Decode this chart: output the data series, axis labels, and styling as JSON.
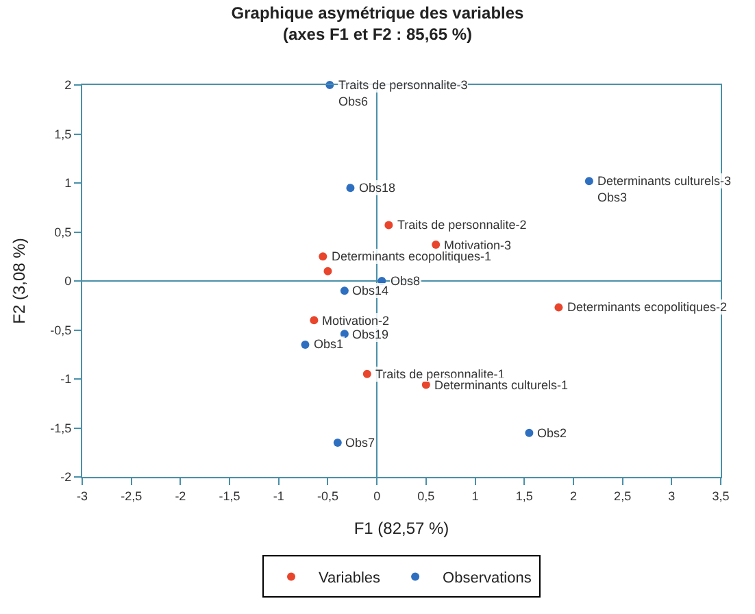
{
  "chart_data": {
    "type": "scatter",
    "title": "Graphique asymétrique des variables\n(axes F1 et F2 : 85,65 %)",
    "xlabel": "F1 (82,57 %)",
    "ylabel": "F2 (3,08 %)",
    "xlim": [
      -3,
      3.5
    ],
    "ylim": [
      -2,
      2
    ],
    "xticks": [
      -3,
      {
        "value": -2.5,
        "label": "-2,5"
      },
      -2,
      {
        "value": -1.5,
        "label": "-1,5"
      },
      -1,
      {
        "value": -0.5,
        "label": "-0,5"
      },
      0,
      {
        "value": 0.5,
        "label": "0,5"
      },
      1,
      {
        "value": 1.5,
        "label": "1,5"
      },
      2,
      {
        "value": 2.5,
        "label": "2,5"
      },
      3,
      {
        "value": 3.5,
        "label": "3,5"
      }
    ],
    "yticks": [
      {
        "value": -2,
        "label": "-2"
      },
      {
        "value": -1.5,
        "label": "-1,5"
      },
      -1,
      {
        "value": -0.5,
        "label": "-0,5"
      },
      0,
      {
        "value": 0.5,
        "label": "0,5"
      },
      1,
      {
        "value": 1.5,
        "label": "1,5"
      },
      2
    ],
    "legend": "bottom",
    "marker": "circle",
    "series": [
      {
        "name": "Variables",
        "color": "#e8452c",
        "x": [
          -0.1,
          0.12,
          null,
          -0.64,
          0.6,
          0.5,
          null,
          -0.55,
          -0.5,
          1.85
        ],
        "values": [
          -0.95,
          0.57,
          null,
          -0.4,
          0.37,
          -1.06,
          null,
          0.25,
          0.1,
          -0.27
        ]
      },
      {
        "name": "Observations",
        "color": "#2e6fc0",
        "x": [
          -0.48,
          -0.27,
          0.05,
          2.16,
          1.55,
          -0.33,
          -0.33,
          -0.73,
          -0.4
        ],
        "values": [
          2.0,
          0.95,
          0.0,
          1.02,
          -1.55,
          -0.1,
          -0.54,
          -0.65,
          -1.65
        ]
      }
    ],
    "annotations": [
      {
        "text": "Traits de personnalite-1",
        "x": -0.1,
        "y": -0.95
      },
      {
        "text": "Traits de personnalite-2",
        "x": 0.12,
        "y": 0.57
      },
      {
        "text": "Traits de personnalite-3",
        "x": -0.48,
        "y": 2.0
      },
      {
        "text": "Motivation-2",
        "x": -0.64,
        "y": -0.4
      },
      {
        "text": "Motivation-3",
        "x": 0.6,
        "y": 0.37
      },
      {
        "text": "Determinants culturels-1",
        "x": 0.5,
        "y": -1.06
      },
      {
        "text": "Determinants culturels-3",
        "x": 2.16,
        "y": 1.02
      },
      {
        "text": "Determinants ecopolitiques-1",
        "x": -0.55,
        "y": 0.25
      },
      {
        "text": "Determinants ecopolitiques-2",
        "x": 1.85,
        "y": -0.27
      },
      {
        "text": "Obs6",
        "x": -0.48,
        "y": 2.0
      },
      {
        "text": "Obs18",
        "x": -0.27,
        "y": 0.95
      },
      {
        "text": "Obs8",
        "x": 0.05,
        "y": 0.0
      },
      {
        "text": "Obs3",
        "x": 2.16,
        "y": 1.02
      },
      {
        "text": "Obs2",
        "x": 1.55,
        "y": -1.55
      },
      {
        "text": "Obs14",
        "x": -0.33,
        "y": -0.1
      },
      {
        "text": "Obs19",
        "x": -0.33,
        "y": -0.54
      },
      {
        "text": "Obs1",
        "x": -0.73,
        "y": -0.65
      },
      {
        "text": "Obs7",
        "x": -0.4,
        "y": -1.65
      }
    ]
  }
}
